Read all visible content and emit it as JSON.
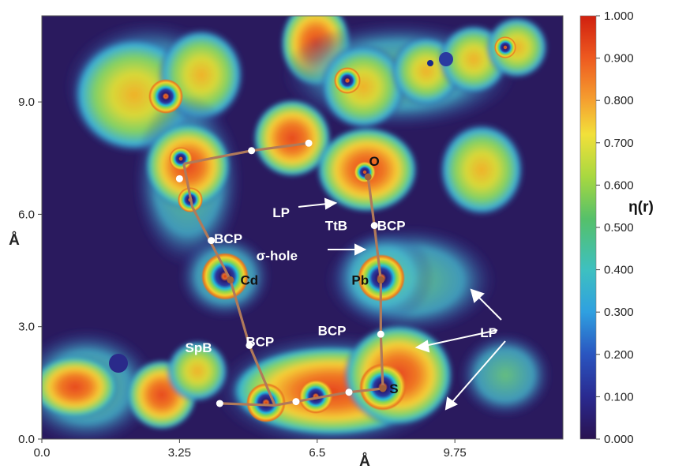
{
  "chart_data": {
    "type": "heatmap",
    "title": "",
    "xlabel": "Å",
    "ylabel": "Å",
    "xlim": [
      0.0,
      12.3
    ],
    "ylim": [
      0.0,
      11.3
    ],
    "x_ticks": [
      "0.0",
      "3.25",
      "6.5",
      "9.75"
    ],
    "y_ticks": [
      "0.0",
      "3.0",
      "6.0",
      "9.0"
    ],
    "x_tick_values": [
      0.0,
      3.25,
      6.5,
      9.75
    ],
    "y_tick_values": [
      0.0,
      3.0,
      6.0,
      9.0
    ],
    "colorbar": {
      "label": "η(r)",
      "range": [
        0.0,
        1.0
      ],
      "ticks": [
        "1.000",
        "0.900",
        "0.800",
        "0.700",
        "0.600",
        "0.500",
        "0.400",
        "0.300",
        "0.200",
        "0.100",
        "0.000"
      ],
      "tick_values": [
        1.0,
        0.9,
        0.8,
        0.7,
        0.6,
        0.5,
        0.4,
        0.3,
        0.2,
        0.1,
        0.0
      ]
    },
    "atoms": [
      {
        "label": "Cd",
        "x": 4.45,
        "y": 4.25
      },
      {
        "label": "Pb",
        "x": 8.0,
        "y": 4.25
      },
      {
        "label": "O",
        "x": 7.7,
        "y": 7.0
      },
      {
        "label": "S",
        "x": 8.05,
        "y": 1.35
      }
    ],
    "bond_paths": [
      [
        [
          3.35,
          7.35
        ],
        [
          4.95,
          7.7
        ],
        [
          6.3,
          7.9
        ]
      ],
      [
        [
          3.35,
          7.35
        ],
        [
          3.55,
          6.2
        ],
        [
          4.45,
          4.25
        ],
        [
          4.9,
          2.5
        ],
        [
          5.5,
          0.9
        ],
        [
          6.0,
          1.0
        ],
        [
          6.5,
          1.1
        ],
        [
          7.25,
          1.25
        ],
        [
          8.05,
          1.35
        ],
        [
          8.0,
          2.8
        ],
        [
          8.0,
          4.25
        ],
        [
          7.85,
          5.7
        ],
        [
          7.7,
          7.0
        ]
      ],
      [
        [
          4.2,
          0.95
        ],
        [
          5.5,
          0.9
        ]
      ]
    ],
    "critical_points": [
      {
        "x": 4.95,
        "y": 7.7
      },
      {
        "x": 6.3,
        "y": 7.9
      },
      {
        "x": 3.25,
        "y": 6.95
      },
      {
        "x": 4.0,
        "y": 5.3
      },
      {
        "x": 4.9,
        "y": 2.5
      },
      {
        "x": 4.2,
        "y": 0.95
      },
      {
        "x": 6.0,
        "y": 1.0
      },
      {
        "x": 7.25,
        "y": 1.25
      },
      {
        "x": 8.0,
        "y": 2.8
      },
      {
        "x": 7.85,
        "y": 5.7
      }
    ],
    "annotations": [
      {
        "text": "BCP",
        "x": 4.4,
        "y": 5.35
      },
      {
        "text": "σ-hole",
        "x": 5.55,
        "y": 4.9
      },
      {
        "text": "LP",
        "x": 5.65,
        "y": 6.05
      },
      {
        "text": "TtB",
        "x": 6.95,
        "y": 5.7
      },
      {
        "text": "BCP",
        "x": 8.25,
        "y": 5.7
      },
      {
        "text": "BCP",
        "x": 6.85,
        "y": 2.9
      },
      {
        "text": "SpB",
        "x": 3.7,
        "y": 2.45
      },
      {
        "text": "BCP",
        "x": 5.15,
        "y": 2.6
      },
      {
        "text": "LP",
        "x": 10.55,
        "y": 2.85
      }
    ],
    "atom_labels_text": {
      "Cd": "Cd",
      "Pb": "Pb",
      "O": "O",
      "S": "S"
    }
  }
}
